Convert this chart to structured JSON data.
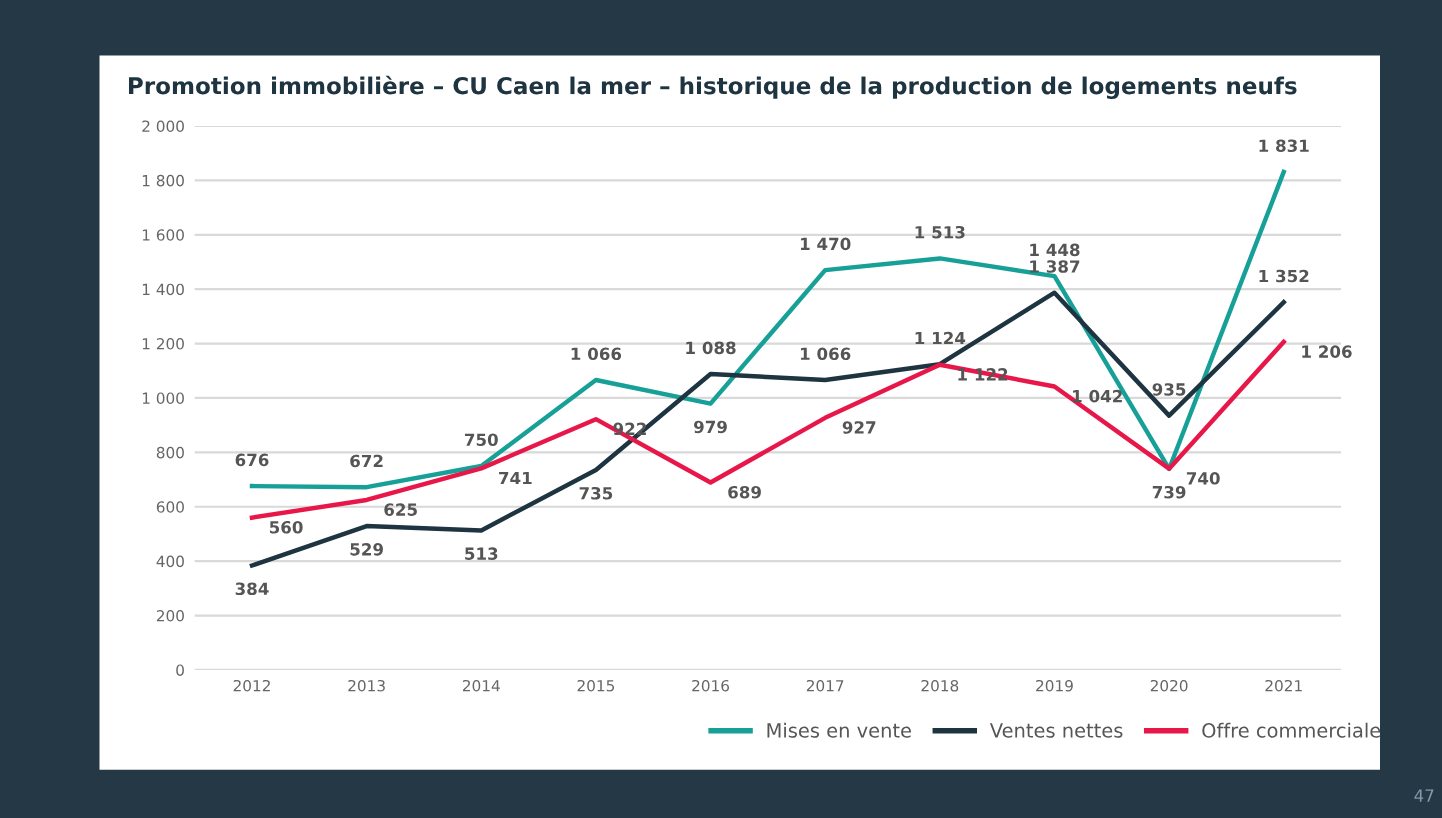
{
  "chart_data": {
    "type": "line",
    "title": "Promotion immobilière – CU Caen la mer – historique de la production de logements neufs",
    "categories": [
      "2012",
      "2013",
      "2014",
      "2015",
      "2016",
      "2017",
      "2018",
      "2019",
      "2020",
      "2021"
    ],
    "series": [
      {
        "name": "Mises en vente",
        "color": "#17a097",
        "values": [
          676,
          672,
          750,
          1066,
          979,
          1470,
          1513,
          1448,
          739,
          1831
        ],
        "value_labels": [
          "676",
          "672",
          "750",
          "1 066",
          "979",
          "1 470",
          "1 513",
          "1 448",
          "739",
          "1 831"
        ]
      },
      {
        "name": "Ventes nettes",
        "color": "#1e3441",
        "values": [
          384,
          529,
          513,
          735,
          1088,
          1066,
          1124,
          1387,
          935,
          1352
        ],
        "value_labels": [
          "384",
          "529",
          "513",
          "735",
          "1 088",
          "1 066",
          "1 124",
          "1 387",
          "935",
          "1 352"
        ]
      },
      {
        "name": "Offre commerciale",
        "color": "#e8174a",
        "values": [
          560,
          625,
          741,
          922,
          689,
          927,
          1122,
          1042,
          740,
          1206
        ],
        "value_labels": [
          "560",
          "625",
          "741",
          "922",
          "689",
          "927",
          "1 122",
          "1 042",
          "740",
          "1 206"
        ]
      }
    ],
    "ylim": [
      0,
      2000
    ],
    "yticks": [
      0,
      200,
      400,
      600,
      800,
      {
        "value": 1000,
        "label": "1 000"
      },
      {
        "value": 1200,
        "label": "1 200"
      },
      {
        "value": 1400,
        "label": "1 400"
      },
      {
        "value": 1600,
        "label": "1 600"
      },
      {
        "value": 1800,
        "label": "1 800"
      },
      {
        "value": 2000,
        "label": "2 000"
      }
    ],
    "grid": "y",
    "legend": "bottom right",
    "marker": "none",
    "line_style": "solid",
    "annotations": [
      "47"
    ]
  }
}
